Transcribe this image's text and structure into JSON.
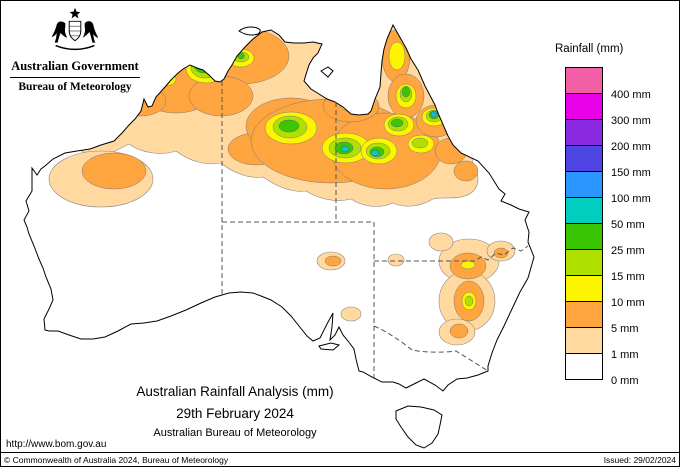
{
  "header": {
    "government": "Australian Government",
    "bureau": "Bureau of Meteorology"
  },
  "legend": {
    "title": "Rainfall (mm)",
    "entries": [
      {
        "label": "400 mm",
        "color": "#F25FA5"
      },
      {
        "label": "300 mm",
        "color": "#E800E8"
      },
      {
        "label": "200 mm",
        "color": "#8A2BE2"
      },
      {
        "label": "150 mm",
        "color": "#4E43E3"
      },
      {
        "label": "100 mm",
        "color": "#2B96FF"
      },
      {
        "label": "50 mm",
        "color": "#00CFC0"
      },
      {
        "label": "25 mm",
        "color": "#3BC603"
      },
      {
        "label": "15 mm",
        "color": "#AEE100"
      },
      {
        "label": "10 mm",
        "color": "#FDF500"
      },
      {
        "label": "5 mm",
        "color": "#FFA53F"
      },
      {
        "label": "1 mm",
        "color": "#FFD9A0"
      },
      {
        "label": "0 mm",
        "color": "#FFFFFF"
      }
    ]
  },
  "caption": {
    "title": "Australian Rainfall Analysis (mm)",
    "date": "29th February 2024",
    "organisation": "Australian Bureau of Meteorology"
  },
  "url": "http://www.bom.gov.au",
  "footer": {
    "copyright": "© Commonwealth of Australia 2024, Bureau of Meteorology",
    "issued": "Issued: 29/02/2024"
  },
  "map": {
    "region": "Australia",
    "type": "rainfall-analysis-contour-map",
    "rainfall_levels_mm": [
      0,
      1,
      5,
      10,
      15,
      25,
      50,
      100,
      150,
      200,
      300,
      400
    ]
  }
}
